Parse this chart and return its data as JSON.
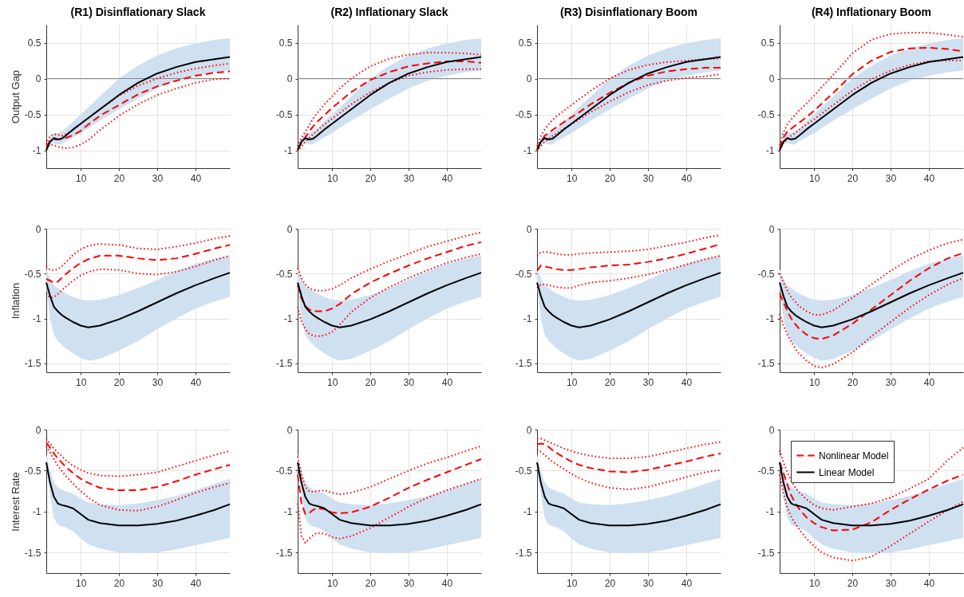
{
  "chart_data": [
    {
      "type": "line",
      "title": "(R1) Disinflationary Slack",
      "ylabel": "Output Gap",
      "x": [
        1,
        2,
        3,
        4,
        5,
        6,
        8,
        10,
        12,
        15,
        20,
        25,
        30,
        35,
        40,
        45,
        49
      ],
      "xlim": [
        1,
        49
      ],
      "xticks": [
        10,
        20,
        30,
        40
      ],
      "ylim": [
        -1.25,
        0.75
      ],
      "yticks": [
        -1,
        -0.5,
        0,
        0.5
      ],
      "grid": true,
      "ref_lines": [
        {
          "axis": "y",
          "value": 0,
          "color": "#8c8c8c"
        }
      ],
      "series": [
        {
          "color": "#ff0000",
          "line_style": "dashed",
          "values": [
            -0.95,
            -0.87,
            -0.85,
            -0.85,
            -0.84,
            -0.83,
            -0.79,
            -0.73,
            -0.64,
            -0.52,
            -0.37,
            -0.22,
            -0.11,
            -0.03,
            0.04,
            0.08,
            0.1
          ]
        },
        {
          "color": "#ff0000",
          "line_style": "dotted",
          "values": [
            -0.92,
            -0.8,
            -0.78,
            -0.78,
            -0.8,
            -0.78,
            -0.72,
            -0.63,
            -0.55,
            -0.43,
            -0.24,
            -0.1,
            0.0,
            0.08,
            0.14,
            0.18,
            0.21
          ]
        },
        {
          "color": "#ff0000",
          "line_style": "dotted",
          "values": [
            -0.98,
            -0.92,
            -0.93,
            -0.95,
            -0.96,
            -0.97,
            -0.96,
            -0.92,
            -0.86,
            -0.72,
            -0.52,
            -0.36,
            -0.23,
            -0.14,
            -0.06,
            -0.01,
            0.0
          ]
        },
        {
          "color": "#000000",
          "line_style": "solid",
          "values": [
            -1.0,
            -0.88,
            -0.83,
            -0.85,
            -0.84,
            -0.8,
            -0.71,
            -0.63,
            -0.55,
            -0.43,
            -0.23,
            -0.06,
            0.07,
            0.16,
            0.23,
            0.27,
            0.3
          ],
          "lower": [
            -1.0,
            -0.92,
            -0.9,
            -0.92,
            -0.92,
            -0.88,
            -0.82,
            -0.76,
            -0.69,
            -0.59,
            -0.43,
            -0.28,
            -0.14,
            -0.03,
            0.04,
            0.09,
            0.11
          ],
          "upper": [
            -0.97,
            -0.83,
            -0.76,
            -0.76,
            -0.74,
            -0.7,
            -0.6,
            -0.5,
            -0.4,
            -0.25,
            0.0,
            0.18,
            0.32,
            0.42,
            0.49,
            0.54,
            0.56
          ]
        }
      ]
    },
    {
      "type": "line",
      "title": "(R2) Inflationary Slack",
      "x": [
        1,
        2,
        3,
        4,
        5,
        6,
        8,
        10,
        12,
        15,
        20,
        25,
        30,
        35,
        40,
        45,
        49
      ],
      "xlim": [
        1,
        49
      ],
      "xticks": [
        10,
        20,
        30,
        40
      ],
      "ylim": [
        -1.25,
        0.75
      ],
      "yticks": [
        -1,
        -0.5,
        0,
        0.5
      ],
      "grid": true,
      "ref_lines": [
        {
          "axis": "y",
          "value": 0,
          "color": "#8c8c8c"
        }
      ],
      "series": [
        {
          "color": "#ff0000",
          "line_style": "dashed",
          "values": [
            -0.98,
            -0.9,
            -0.82,
            -0.74,
            -0.67,
            -0.61,
            -0.51,
            -0.41,
            -0.32,
            -0.19,
            -0.02,
            0.09,
            0.17,
            0.21,
            0.24,
            0.24,
            0.22
          ]
        },
        {
          "color": "#ff0000",
          "line_style": "dotted",
          "values": [
            -0.95,
            -0.83,
            -0.74,
            -0.65,
            -0.56,
            -0.49,
            -0.36,
            -0.25,
            -0.14,
            0.0,
            0.17,
            0.28,
            0.33,
            0.36,
            0.36,
            0.35,
            0.33
          ]
        },
        {
          "color": "#ff0000",
          "line_style": "dotted",
          "values": [
            -1.02,
            -0.95,
            -0.88,
            -0.83,
            -0.78,
            -0.73,
            -0.64,
            -0.56,
            -0.48,
            -0.36,
            -0.19,
            -0.06,
            0.04,
            0.09,
            0.12,
            0.13,
            0.13
          ]
        },
        {
          "color": "#000000",
          "line_style": "solid",
          "values": [
            -1.0,
            -0.88,
            -0.83,
            -0.85,
            -0.84,
            -0.8,
            -0.71,
            -0.63,
            -0.55,
            -0.43,
            -0.23,
            -0.06,
            0.07,
            0.16,
            0.23,
            0.27,
            0.3
          ],
          "lower": [
            -1.0,
            -0.92,
            -0.9,
            -0.92,
            -0.92,
            -0.88,
            -0.82,
            -0.76,
            -0.69,
            -0.59,
            -0.43,
            -0.28,
            -0.14,
            -0.03,
            0.04,
            0.09,
            0.11
          ],
          "upper": [
            -0.97,
            -0.83,
            -0.76,
            -0.76,
            -0.74,
            -0.7,
            -0.6,
            -0.5,
            -0.4,
            -0.25,
            0.0,
            0.18,
            0.32,
            0.42,
            0.49,
            0.54,
            0.56
          ]
        }
      ]
    },
    {
      "type": "line",
      "title": "(R3) Disinflationary Boom",
      "x": [
        1,
        2,
        3,
        4,
        5,
        6,
        8,
        10,
        12,
        15,
        20,
        25,
        30,
        35,
        40,
        45,
        49
      ],
      "xlim": [
        1,
        49
      ],
      "xticks": [
        10,
        20,
        30,
        40
      ],
      "ylim": [
        -1.25,
        0.75
      ],
      "yticks": [
        -1,
        -0.5,
        0,
        0.5
      ],
      "grid": true,
      "ref_lines": [
        {
          "axis": "y",
          "value": 0,
          "color": "#8c8c8c"
        }
      ],
      "series": [
        {
          "color": "#ff0000",
          "line_style": "dashed",
          "values": [
            -0.98,
            -0.88,
            -0.8,
            -0.76,
            -0.72,
            -0.68,
            -0.61,
            -0.54,
            -0.47,
            -0.36,
            -0.2,
            -0.06,
            0.04,
            0.1,
            0.13,
            0.15,
            0.15
          ]
        },
        {
          "color": "#ff0000",
          "line_style": "dotted",
          "values": [
            -0.95,
            -0.8,
            -0.71,
            -0.64,
            -0.58,
            -0.53,
            -0.45,
            -0.37,
            -0.29,
            -0.17,
            0.0,
            0.12,
            0.19,
            0.23,
            0.25,
            0.27,
            0.28
          ]
        },
        {
          "color": "#ff0000",
          "line_style": "dotted",
          "values": [
            -1.02,
            -0.94,
            -0.88,
            -0.84,
            -0.8,
            -0.77,
            -0.7,
            -0.64,
            -0.57,
            -0.47,
            -0.32,
            -0.19,
            -0.09,
            -0.03,
            0.01,
            0.03,
            0.06
          ]
        },
        {
          "color": "#000000",
          "line_style": "solid",
          "values": [
            -1.0,
            -0.88,
            -0.83,
            -0.85,
            -0.84,
            -0.8,
            -0.71,
            -0.63,
            -0.55,
            -0.43,
            -0.23,
            -0.06,
            0.07,
            0.16,
            0.23,
            0.27,
            0.3
          ],
          "lower": [
            -1.0,
            -0.92,
            -0.9,
            -0.92,
            -0.92,
            -0.88,
            -0.82,
            -0.76,
            -0.69,
            -0.59,
            -0.43,
            -0.28,
            -0.14,
            -0.03,
            0.04,
            0.09,
            0.11
          ],
          "upper": [
            -0.97,
            -0.83,
            -0.76,
            -0.76,
            -0.74,
            -0.7,
            -0.6,
            -0.5,
            -0.4,
            -0.25,
            0.0,
            0.18,
            0.32,
            0.42,
            0.49,
            0.54,
            0.56
          ]
        }
      ]
    },
    {
      "type": "line",
      "title": "(R4) Inflationary Boom",
      "x": [
        1,
        2,
        3,
        4,
        5,
        6,
        8,
        10,
        12,
        15,
        20,
        25,
        30,
        35,
        40,
        45,
        49
      ],
      "xlim": [
        1,
        49
      ],
      "xticks": [
        10,
        20,
        30,
        40
      ],
      "ylim": [
        -1.25,
        0.75
      ],
      "yticks": [
        -1,
        -0.5,
        0,
        0.5
      ],
      "grid": true,
      "ref_lines": [
        {
          "axis": "y",
          "value": 0,
          "color": "#8c8c8c"
        }
      ],
      "series": [
        {
          "color": "#ff0000",
          "line_style": "dashed",
          "values": [
            -0.97,
            -0.82,
            -0.74,
            -0.7,
            -0.66,
            -0.62,
            -0.54,
            -0.45,
            -0.35,
            -0.2,
            0.06,
            0.25,
            0.37,
            0.42,
            0.43,
            0.41,
            0.38
          ]
        },
        {
          "color": "#ff0000",
          "line_style": "dotted",
          "values": [
            -0.93,
            -0.75,
            -0.64,
            -0.57,
            -0.51,
            -0.45,
            -0.35,
            -0.24,
            -0.12,
            0.05,
            0.35,
            0.54,
            0.62,
            0.64,
            0.64,
            0.61,
            0.58
          ]
        },
        {
          "color": "#ff0000",
          "line_style": "dotted",
          "values": [
            -1.0,
            -0.9,
            -0.84,
            -0.8,
            -0.76,
            -0.72,
            -0.64,
            -0.57,
            -0.49,
            -0.37,
            -0.17,
            -0.01,
            0.11,
            0.19,
            0.24,
            0.25,
            0.25
          ]
        },
        {
          "color": "#000000",
          "line_style": "solid",
          "values": [
            -1.0,
            -0.88,
            -0.83,
            -0.85,
            -0.84,
            -0.8,
            -0.71,
            -0.63,
            -0.55,
            -0.43,
            -0.23,
            -0.06,
            0.07,
            0.16,
            0.23,
            0.27,
            0.3
          ],
          "lower": [
            -1.0,
            -0.92,
            -0.9,
            -0.92,
            -0.92,
            -0.88,
            -0.82,
            -0.76,
            -0.69,
            -0.59,
            -0.43,
            -0.28,
            -0.14,
            -0.03,
            0.04,
            0.09,
            0.11
          ],
          "upper": [
            -0.97,
            -0.83,
            -0.76,
            -0.76,
            -0.74,
            -0.7,
            -0.6,
            -0.5,
            -0.4,
            -0.25,
            0.0,
            0.18,
            0.32,
            0.42,
            0.49,
            0.54,
            0.56
          ]
        }
      ]
    },
    {
      "type": "line",
      "ylabel": "Inflation",
      "x": [
        1,
        2,
        3,
        4,
        5,
        6,
        8,
        10,
        12,
        15,
        20,
        25,
        30,
        35,
        40,
        45,
        49
      ],
      "xlim": [
        1,
        49
      ],
      "xticks": [
        10,
        20,
        30,
        40
      ],
      "ylim": [
        -1.6,
        0
      ],
      "yticks": [
        -1.5,
        -1,
        -0.5,
        0
      ],
      "grid": true,
      "series": [
        {
          "color": "#ff0000",
          "line_style": "dashed",
          "values": [
            -0.56,
            -0.58,
            -0.6,
            -0.59,
            -0.55,
            -0.51,
            -0.44,
            -0.38,
            -0.34,
            -0.3,
            -0.3,
            -0.33,
            -0.35,
            -0.33,
            -0.28,
            -0.22,
            -0.18
          ]
        },
        {
          "color": "#ff0000",
          "line_style": "dotted",
          "values": [
            -0.42,
            -0.46,
            -0.46,
            -0.45,
            -0.42,
            -0.38,
            -0.29,
            -0.23,
            -0.19,
            -0.17,
            -0.18,
            -0.22,
            -0.23,
            -0.2,
            -0.16,
            -0.11,
            -0.08
          ]
        },
        {
          "color": "#ff0000",
          "line_style": "dotted",
          "values": [
            -0.72,
            -0.77,
            -0.76,
            -0.73,
            -0.69,
            -0.65,
            -0.58,
            -0.52,
            -0.48,
            -0.45,
            -0.46,
            -0.5,
            -0.51,
            -0.48,
            -0.42,
            -0.35,
            -0.3
          ]
        },
        {
          "color": "#000000",
          "line_style": "solid",
          "values": [
            -0.6,
            -0.75,
            -0.87,
            -0.92,
            -0.96,
            -0.99,
            -1.04,
            -1.08,
            -1.1,
            -1.08,
            -1.01,
            -0.92,
            -0.82,
            -0.72,
            -0.63,
            -0.55,
            -0.49
          ],
          "lower": [
            -0.65,
            -1.0,
            -1.18,
            -1.25,
            -1.29,
            -1.33,
            -1.39,
            -1.44,
            -1.47,
            -1.45,
            -1.36,
            -1.25,
            -1.12,
            -1.0,
            -0.89,
            -0.81,
            -0.76
          ],
          "upper": [
            -0.45,
            -0.55,
            -0.63,
            -0.66,
            -0.69,
            -0.72,
            -0.76,
            -0.79,
            -0.8,
            -0.79,
            -0.74,
            -0.66,
            -0.57,
            -0.47,
            -0.39,
            -0.33,
            -0.3
          ]
        }
      ]
    },
    {
      "type": "line",
      "x": [
        1,
        2,
        3,
        4,
        5,
        6,
        8,
        10,
        12,
        15,
        20,
        25,
        30,
        35,
        40,
        45,
        49
      ],
      "xlim": [
        1,
        49
      ],
      "xticks": [
        10,
        20,
        30,
        40
      ],
      "ylim": [
        -1.6,
        0
      ],
      "yticks": [
        -1.5,
        -1,
        -0.5,
        0
      ],
      "grid": true,
      "series": [
        {
          "color": "#ff0000",
          "line_style": "dashed",
          "values": [
            -0.63,
            -0.78,
            -0.86,
            -0.9,
            -0.92,
            -0.92,
            -0.92,
            -0.89,
            -0.84,
            -0.73,
            -0.6,
            -0.5,
            -0.41,
            -0.33,
            -0.26,
            -0.19,
            -0.15
          ]
        },
        {
          "color": "#ff0000",
          "line_style": "dotted",
          "values": [
            -0.44,
            -0.55,
            -0.62,
            -0.66,
            -0.68,
            -0.69,
            -0.69,
            -0.67,
            -0.63,
            -0.55,
            -0.45,
            -0.36,
            -0.28,
            -0.2,
            -0.14,
            -0.08,
            -0.04
          ]
        },
        {
          "color": "#ff0000",
          "line_style": "dotted",
          "values": [
            -0.87,
            -1.03,
            -1.12,
            -1.17,
            -1.19,
            -1.2,
            -1.19,
            -1.15,
            -1.07,
            -0.93,
            -0.77,
            -0.65,
            -0.55,
            -0.46,
            -0.38,
            -0.32,
            -0.28
          ]
        },
        {
          "color": "#000000",
          "line_style": "solid",
          "values": [
            -0.6,
            -0.75,
            -0.87,
            -0.92,
            -0.96,
            -0.99,
            -1.04,
            -1.08,
            -1.1,
            -1.08,
            -1.01,
            -0.92,
            -0.82,
            -0.72,
            -0.63,
            -0.55,
            -0.49
          ],
          "lower": [
            -0.65,
            -1.0,
            -1.18,
            -1.25,
            -1.29,
            -1.33,
            -1.39,
            -1.44,
            -1.47,
            -1.45,
            -1.36,
            -1.25,
            -1.12,
            -1.0,
            -0.89,
            -0.81,
            -0.76
          ],
          "upper": [
            -0.45,
            -0.55,
            -0.63,
            -0.66,
            -0.69,
            -0.72,
            -0.76,
            -0.79,
            -0.8,
            -0.79,
            -0.74,
            -0.66,
            -0.57,
            -0.47,
            -0.39,
            -0.33,
            -0.3
          ]
        }
      ]
    },
    {
      "type": "line",
      "x": [
        1,
        2,
        3,
        4,
        5,
        6,
        8,
        10,
        12,
        15,
        20,
        25,
        30,
        35,
        40,
        45,
        49
      ],
      "xlim": [
        1,
        49
      ],
      "xticks": [
        10,
        20,
        30,
        40
      ],
      "ylim": [
        -1.6,
        0
      ],
      "yticks": [
        -1.5,
        -1,
        -0.5,
        0
      ],
      "grid": true,
      "series": [
        {
          "color": "#ff0000",
          "line_style": "dashed",
          "values": [
            -0.47,
            -0.41,
            -0.42,
            -0.43,
            -0.44,
            -0.45,
            -0.46,
            -0.46,
            -0.45,
            -0.43,
            -0.41,
            -0.4,
            -0.37,
            -0.33,
            -0.28,
            -0.22,
            -0.17
          ]
        },
        {
          "color": "#ff0000",
          "line_style": "dotted",
          "values": [
            -0.3,
            -0.26,
            -0.26,
            -0.26,
            -0.27,
            -0.28,
            -0.29,
            -0.29,
            -0.28,
            -0.27,
            -0.26,
            -0.25,
            -0.23,
            -0.19,
            -0.15,
            -0.1,
            -0.07
          ]
        },
        {
          "color": "#ff0000",
          "line_style": "dotted",
          "values": [
            -0.66,
            -0.62,
            -0.62,
            -0.63,
            -0.64,
            -0.65,
            -0.66,
            -0.66,
            -0.63,
            -0.6,
            -0.58,
            -0.55,
            -0.51,
            -0.46,
            -0.4,
            -0.34,
            -0.3
          ]
        },
        {
          "color": "#000000",
          "line_style": "solid",
          "values": [
            -0.6,
            -0.75,
            -0.87,
            -0.92,
            -0.96,
            -0.99,
            -1.04,
            -1.08,
            -1.1,
            -1.08,
            -1.01,
            -0.92,
            -0.82,
            -0.72,
            -0.63,
            -0.55,
            -0.49
          ],
          "lower": [
            -0.65,
            -1.0,
            -1.18,
            -1.25,
            -1.29,
            -1.33,
            -1.39,
            -1.44,
            -1.47,
            -1.45,
            -1.36,
            -1.25,
            -1.12,
            -1.0,
            -0.89,
            -0.81,
            -0.76
          ],
          "upper": [
            -0.45,
            -0.55,
            -0.63,
            -0.66,
            -0.69,
            -0.72,
            -0.76,
            -0.79,
            -0.8,
            -0.79,
            -0.74,
            -0.66,
            -0.57,
            -0.47,
            -0.39,
            -0.33,
            -0.3
          ]
        }
      ]
    },
    {
      "type": "line",
      "x": [
        1,
        2,
        3,
        4,
        5,
        6,
        8,
        10,
        12,
        15,
        20,
        25,
        30,
        35,
        40,
        45,
        49
      ],
      "xlim": [
        1,
        49
      ],
      "xticks": [
        10,
        20,
        30,
        40
      ],
      "ylim": [
        -1.6,
        0
      ],
      "yticks": [
        -1.5,
        -1,
        -0.5,
        0
      ],
      "grid": true,
      "series": [
        {
          "color": "#ff0000",
          "line_style": "dashed",
          "values": [
            -0.72,
            -0.82,
            -0.92,
            -1.0,
            -1.06,
            -1.11,
            -1.18,
            -1.22,
            -1.23,
            -1.19,
            -1.06,
            -0.9,
            -0.74,
            -0.58,
            -0.44,
            -0.33,
            -0.27
          ]
        },
        {
          "color": "#ff0000",
          "line_style": "dotted",
          "values": [
            -0.5,
            -0.6,
            -0.69,
            -0.76,
            -0.81,
            -0.86,
            -0.92,
            -0.96,
            -0.96,
            -0.91,
            -0.77,
            -0.62,
            -0.47,
            -0.34,
            -0.24,
            -0.16,
            -0.12
          ]
        },
        {
          "color": "#ff0000",
          "line_style": "dotted",
          "values": [
            -0.95,
            -1.08,
            -1.18,
            -1.26,
            -1.33,
            -1.39,
            -1.47,
            -1.53,
            -1.55,
            -1.51,
            -1.38,
            -1.2,
            -1.04,
            -0.88,
            -0.74,
            -0.62,
            -0.55
          ]
        },
        {
          "color": "#000000",
          "line_style": "solid",
          "values": [
            -0.6,
            -0.75,
            -0.87,
            -0.92,
            -0.96,
            -0.99,
            -1.04,
            -1.08,
            -1.1,
            -1.08,
            -1.01,
            -0.92,
            -0.82,
            -0.72,
            -0.63,
            -0.55,
            -0.49
          ],
          "lower": [
            -0.65,
            -1.0,
            -1.18,
            -1.25,
            -1.29,
            -1.33,
            -1.39,
            -1.44,
            -1.47,
            -1.45,
            -1.36,
            -1.25,
            -1.12,
            -1.0,
            -0.89,
            -0.81,
            -0.76
          ],
          "upper": [
            -0.45,
            -0.55,
            -0.63,
            -0.66,
            -0.69,
            -0.72,
            -0.76,
            -0.79,
            -0.8,
            -0.79,
            -0.74,
            -0.66,
            -0.57,
            -0.47,
            -0.39,
            -0.33,
            -0.3
          ]
        }
      ]
    },
    {
      "type": "line",
      "ylabel": "Interest Rate",
      "x": [
        1,
        2,
        3,
        4,
        5,
        6,
        8,
        10,
        12,
        15,
        20,
        25,
        30,
        35,
        40,
        45,
        49
      ],
      "xlim": [
        1,
        49
      ],
      "xticks": [
        10,
        20,
        30,
        40
      ],
      "ylim": [
        -1.75,
        0
      ],
      "yticks": [
        -1.5,
        -1,
        -0.5,
        0
      ],
      "grid": true,
      "series": [
        {
          "color": "#ff0000",
          "line_style": "dashed",
          "values": [
            -0.16,
            -0.22,
            -0.29,
            -0.35,
            -0.4,
            -0.45,
            -0.53,
            -0.6,
            -0.65,
            -0.71,
            -0.74,
            -0.74,
            -0.7,
            -0.63,
            -0.55,
            -0.48,
            -0.43
          ]
        },
        {
          "color": "#ff0000",
          "line_style": "dotted",
          "values": [
            -0.11,
            -0.17,
            -0.23,
            -0.28,
            -0.32,
            -0.37,
            -0.44,
            -0.49,
            -0.53,
            -0.56,
            -0.57,
            -0.55,
            -0.52,
            -0.45,
            -0.38,
            -0.31,
            -0.26
          ]
        },
        {
          "color": "#ff0000",
          "line_style": "dotted",
          "values": [
            -0.2,
            -0.28,
            -0.36,
            -0.44,
            -0.5,
            -0.56,
            -0.66,
            -0.75,
            -0.83,
            -0.92,
            -0.98,
            -0.99,
            -0.94,
            -0.86,
            -0.77,
            -0.7,
            -0.65
          ]
        },
        {
          "color": "#000000",
          "line_style": "solid",
          "values": [
            -0.4,
            -0.65,
            -0.82,
            -0.9,
            -0.92,
            -0.93,
            -0.96,
            -1.03,
            -1.1,
            -1.14,
            -1.17,
            -1.17,
            -1.15,
            -1.11,
            -1.05,
            -0.98,
            -0.91
          ],
          "lower": [
            -0.45,
            -0.8,
            -1.08,
            -1.16,
            -1.18,
            -1.19,
            -1.24,
            -1.33,
            -1.4,
            -1.45,
            -1.5,
            -1.51,
            -1.5,
            -1.46,
            -1.41,
            -1.36,
            -1.32
          ],
          "upper": [
            -0.3,
            -0.5,
            -0.64,
            -0.7,
            -0.73,
            -0.75,
            -0.78,
            -0.84,
            -0.89,
            -0.91,
            -0.92,
            -0.9,
            -0.86,
            -0.81,
            -0.74,
            -0.66,
            -0.6
          ]
        }
      ]
    },
    {
      "type": "line",
      "x": [
        1,
        2,
        3,
        4,
        5,
        6,
        8,
        10,
        12,
        15,
        20,
        25,
        30,
        35,
        40,
        45,
        49
      ],
      "xlim": [
        1,
        49
      ],
      "xticks": [
        10,
        20,
        30,
        40
      ],
      "ylim": [
        -1.75,
        0
      ],
      "yticks": [
        -1.5,
        -1,
        -0.5,
        0
      ],
      "grid": true,
      "series": [
        {
          "color": "#ff0000",
          "line_style": "dashed",
          "values": [
            -0.55,
            -0.9,
            -1.03,
            -1.02,
            -0.98,
            -0.96,
            -0.97,
            -1.01,
            -1.02,
            -1.01,
            -0.94,
            -0.83,
            -0.71,
            -0.61,
            -0.52,
            -0.43,
            -0.36
          ]
        },
        {
          "color": "#ff0000",
          "line_style": "dotted",
          "values": [
            -0.33,
            -0.55,
            -0.7,
            -0.75,
            -0.76,
            -0.75,
            -0.74,
            -0.77,
            -0.79,
            -0.77,
            -0.7,
            -0.6,
            -0.5,
            -0.41,
            -0.34,
            -0.26,
            -0.2
          ]
        },
        {
          "color": "#ff0000",
          "line_style": "dotted",
          "values": [
            -0.9,
            -1.3,
            -1.38,
            -1.33,
            -1.29,
            -1.26,
            -1.27,
            -1.31,
            -1.33,
            -1.3,
            -1.2,
            -1.07,
            -0.94,
            -0.83,
            -0.74,
            -0.66,
            -0.6
          ]
        },
        {
          "color": "#000000",
          "line_style": "solid",
          "values": [
            -0.4,
            -0.65,
            -0.82,
            -0.9,
            -0.92,
            -0.93,
            -0.96,
            -1.03,
            -1.1,
            -1.14,
            -1.17,
            -1.17,
            -1.15,
            -1.11,
            -1.05,
            -0.98,
            -0.91
          ],
          "lower": [
            -0.45,
            -0.8,
            -1.08,
            -1.16,
            -1.18,
            -1.19,
            -1.24,
            -1.33,
            -1.4,
            -1.45,
            -1.5,
            -1.51,
            -1.5,
            -1.46,
            -1.41,
            -1.36,
            -1.32
          ],
          "upper": [
            -0.3,
            -0.5,
            -0.64,
            -0.7,
            -0.73,
            -0.75,
            -0.78,
            -0.84,
            -0.89,
            -0.91,
            -0.92,
            -0.9,
            -0.86,
            -0.81,
            -0.74,
            -0.66,
            -0.6
          ]
        }
      ]
    },
    {
      "type": "line",
      "x": [
        1,
        2,
        3,
        4,
        5,
        6,
        8,
        10,
        12,
        15,
        20,
        25,
        30,
        35,
        40,
        45,
        49
      ],
      "xlim": [
        1,
        49
      ],
      "xticks": [
        10,
        20,
        30,
        40
      ],
      "ylim": [
        -1.75,
        0
      ],
      "yticks": [
        -1.5,
        -1,
        -0.5,
        0
      ],
      "grid": true,
      "series": [
        {
          "color": "#ff0000",
          "line_style": "dashed",
          "values": [
            -0.18,
            -0.17,
            -0.18,
            -0.21,
            -0.25,
            -0.28,
            -0.34,
            -0.39,
            -0.43,
            -0.47,
            -0.51,
            -0.52,
            -0.49,
            -0.44,
            -0.39,
            -0.33,
            -0.29
          ]
        },
        {
          "color": "#ff0000",
          "line_style": "dotted",
          "values": [
            -0.11,
            -0.11,
            -0.13,
            -0.15,
            -0.17,
            -0.19,
            -0.23,
            -0.26,
            -0.29,
            -0.32,
            -0.35,
            -0.35,
            -0.33,
            -0.28,
            -0.23,
            -0.18,
            -0.15
          ]
        },
        {
          "color": "#ff0000",
          "line_style": "dotted",
          "values": [
            -0.24,
            -0.27,
            -0.31,
            -0.35,
            -0.39,
            -0.42,
            -0.48,
            -0.54,
            -0.59,
            -0.65,
            -0.71,
            -0.73,
            -0.7,
            -0.64,
            -0.58,
            -0.52,
            -0.49
          ]
        },
        {
          "color": "#000000",
          "line_style": "solid",
          "values": [
            -0.4,
            -0.65,
            -0.82,
            -0.9,
            -0.92,
            -0.93,
            -0.96,
            -1.03,
            -1.1,
            -1.14,
            -1.17,
            -1.17,
            -1.15,
            -1.11,
            -1.05,
            -0.98,
            -0.91
          ],
          "lower": [
            -0.45,
            -0.8,
            -1.08,
            -1.16,
            -1.18,
            -1.19,
            -1.24,
            -1.33,
            -1.4,
            -1.45,
            -1.5,
            -1.51,
            -1.5,
            -1.46,
            -1.41,
            -1.36,
            -1.32
          ],
          "upper": [
            -0.3,
            -0.5,
            -0.64,
            -0.7,
            -0.73,
            -0.75,
            -0.78,
            -0.84,
            -0.89,
            -0.91,
            -0.92,
            -0.9,
            -0.86,
            -0.81,
            -0.74,
            -0.66,
            -0.6
          ]
        }
      ]
    },
    {
      "type": "line",
      "x": [
        1,
        2,
        3,
        4,
        5,
        6,
        8,
        10,
        12,
        15,
        20,
        25,
        30,
        35,
        40,
        45,
        49
      ],
      "xlim": [
        1,
        49
      ],
      "xticks": [
        10,
        20,
        30,
        40
      ],
      "ylim": [
        -1.75,
        0
      ],
      "yticks": [
        -1.5,
        -1,
        -0.5,
        0
      ],
      "grid": true,
      "legend": "top left",
      "series": [
        {
          "name": "Nonlinear Model",
          "color": "#ff0000",
          "line_style": "dashed",
          "values": [
            -0.4,
            -0.53,
            -0.67,
            -0.8,
            -0.89,
            -0.96,
            -1.07,
            -1.14,
            -1.19,
            -1.23,
            -1.22,
            -1.13,
            -0.98,
            -0.85,
            -0.73,
            -0.62,
            -0.55
          ]
        },
        {
          "color": "#ff0000",
          "line_style": "dotted",
          "values": [
            -0.25,
            -0.4,
            -0.52,
            -0.62,
            -0.7,
            -0.76,
            -0.85,
            -0.92,
            -0.96,
            -0.98,
            -0.94,
            -0.9,
            -0.83,
            -0.72,
            -0.6,
            -0.37,
            -0.22
          ]
        },
        {
          "color": "#ff0000",
          "line_style": "dotted",
          "values": [
            -0.55,
            -0.78,
            -0.95,
            -1.06,
            -1.14,
            -1.21,
            -1.33,
            -1.42,
            -1.5,
            -1.56,
            -1.6,
            -1.55,
            -1.42,
            -1.27,
            -1.12,
            -0.98,
            -0.88
          ]
        },
        {
          "name": "Linear Model",
          "color": "#000000",
          "line_style": "solid",
          "values": [
            -0.4,
            -0.65,
            -0.82,
            -0.9,
            -0.92,
            -0.93,
            -0.96,
            -1.03,
            -1.1,
            -1.14,
            -1.17,
            -1.17,
            -1.15,
            -1.11,
            -1.05,
            -0.98,
            -0.91
          ],
          "lower": [
            -0.45,
            -0.8,
            -1.08,
            -1.16,
            -1.18,
            -1.19,
            -1.24,
            -1.33,
            -1.4,
            -1.45,
            -1.5,
            -1.51,
            -1.5,
            -1.46,
            -1.41,
            -1.36,
            -1.32
          ],
          "upper": [
            -0.3,
            -0.5,
            -0.64,
            -0.7,
            -0.73,
            -0.75,
            -0.78,
            -0.84,
            -0.89,
            -0.91,
            -0.92,
            -0.9,
            -0.86,
            -0.81,
            -0.74,
            -0.66,
            -0.6
          ]
        }
      ]
    }
  ]
}
